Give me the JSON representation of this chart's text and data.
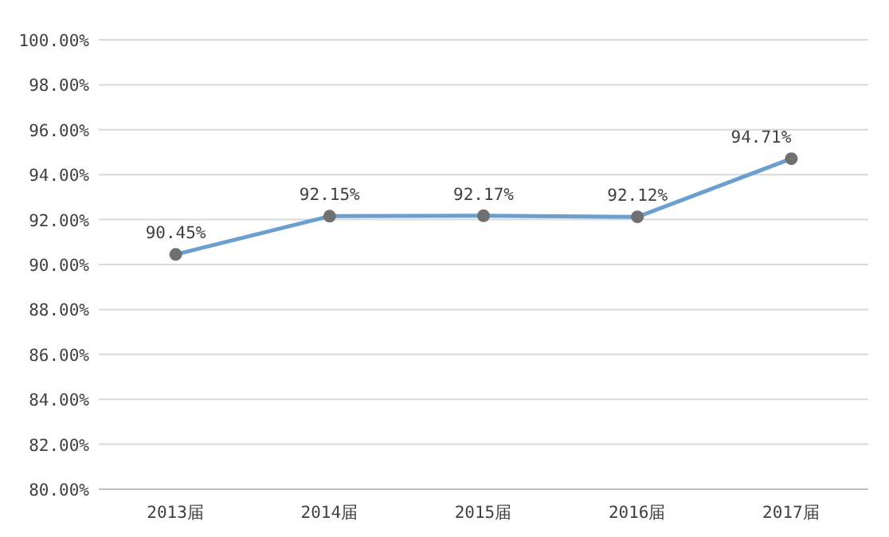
{
  "chart_data": {
    "type": "line",
    "categories": [
      "2013届",
      "2014届",
      "2015届",
      "2016届",
      "2017届"
    ],
    "series": [
      {
        "color": "#6a9fcf",
        "values": [
          90.45,
          92.15,
          92.17,
          92.12,
          94.71
        ],
        "value_labels": [
          "90.45%",
          "92.15%",
          "92.17%",
          "92.12%",
          "94.71%"
        ]
      }
    ],
    "marker": "circle",
    "ylim": [
      80,
      100
    ],
    "yticks": [
      {
        "value": 80,
        "label": "80.00%"
      },
      {
        "value": 82,
        "label": "82.00%"
      },
      {
        "value": 84,
        "label": "84.00%"
      },
      {
        "value": 86,
        "label": "86.00%"
      },
      {
        "value": 88,
        "label": "88.00%"
      },
      {
        "value": 90,
        "label": "90.00%"
      },
      {
        "value": 92,
        "label": "92.00%"
      },
      {
        "value": 94,
        "label": "94.00%"
      },
      {
        "value": 96,
        "label": "96.00%"
      },
      {
        "value": 98,
        "label": "98.00%"
      },
      {
        "value": 100,
        "label": "100.00%"
      }
    ],
    "grid": "y"
  }
}
